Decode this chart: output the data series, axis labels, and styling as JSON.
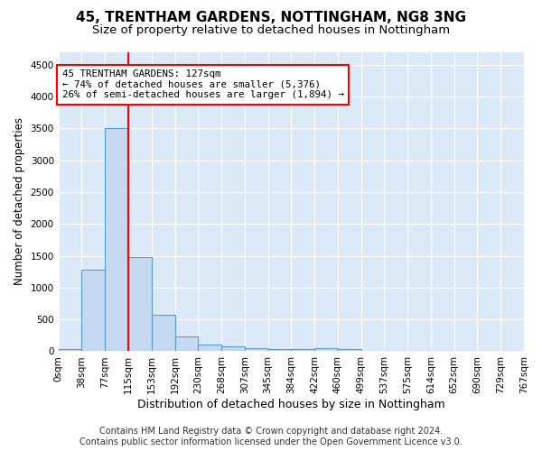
{
  "title": "45, TRENTHAM GARDENS, NOTTINGHAM, NG8 3NG",
  "subtitle": "Size of property relative to detached houses in Nottingham",
  "xlabel": "Distribution of detached houses by size in Nottingham",
  "ylabel": "Number of detached properties",
  "bin_labels": [
    "0sqm",
    "38sqm",
    "77sqm",
    "115sqm",
    "153sqm",
    "192sqm",
    "230sqm",
    "268sqm",
    "307sqm",
    "345sqm",
    "384sqm",
    "422sqm",
    "460sqm",
    "499sqm",
    "537sqm",
    "575sqm",
    "614sqm",
    "652sqm",
    "690sqm",
    "729sqm",
    "767sqm"
  ],
  "bar_values": [
    30,
    1280,
    3500,
    1480,
    570,
    240,
    110,
    80,
    50,
    30,
    30,
    50,
    30,
    0,
    0,
    0,
    0,
    0,
    0,
    0
  ],
  "bar_color": "#c5d9f0",
  "bar_edge_color": "#5b9bd5",
  "vline_pos": 3.0,
  "vline_color": "red",
  "annotation_text": "45 TRENTHAM GARDENS: 127sqm\n← 74% of detached houses are smaller (5,376)\n26% of semi-detached houses are larger (1,894) →",
  "annotation_box_color": "white",
  "annotation_box_edgecolor": "red",
  "ylim": [
    0,
    4700
  ],
  "yticks": [
    0,
    500,
    1000,
    1500,
    2000,
    2500,
    3000,
    3500,
    4000,
    4500
  ],
  "footer_line1": "Contains HM Land Registry data © Crown copyright and database right 2024.",
  "footer_line2": "Contains public sector information licensed under the Open Government Licence v3.0.",
  "plot_bg_color": "#dce9f7",
  "title_fontsize": 11,
  "subtitle_fontsize": 9.5,
  "xlabel_fontsize": 9,
  "ylabel_fontsize": 8.5,
  "tick_fontsize": 7.5,
  "footer_fontsize": 7
}
